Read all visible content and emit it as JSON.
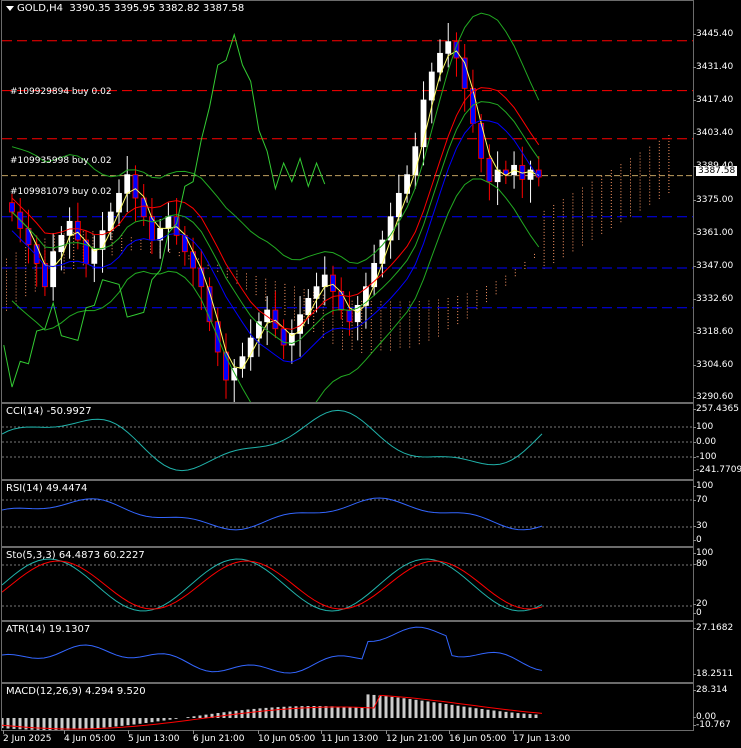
{
  "symbol_header": {
    "symbol": "GOLD,H4",
    "ohlc": "3390.35 3395.95 3382.82 3387.58"
  },
  "main_axis": [
    "3445.40",
    "3431.40",
    "3417.40",
    "3403.40",
    "3389.40",
    "3375.00",
    "3361.00",
    "3347.00",
    "3332.60",
    "3318.60",
    "3304.60",
    "3290.60"
  ],
  "current_price": "3387.58",
  "orders": [
    {
      "label": "#109929894 buy 0.02"
    },
    {
      "label": "#109935998 buy 0.02"
    },
    {
      "label": "#109981079 buy 0.02"
    }
  ],
  "indicators": {
    "cci": {
      "label": "CCI(14) -50.9927",
      "axis": [
        "257.4365",
        "100",
        "0.00",
        "-100",
        "-241.7709"
      ]
    },
    "rsi": {
      "label": "RSI(14) 49.4474",
      "axis": [
        "100",
        "70",
        "30",
        "0"
      ]
    },
    "stoch": {
      "label": "Sto(5,3,3) 64.4873 60.2227",
      "axis": [
        "100",
        "80",
        "20",
        "0"
      ]
    },
    "atr": {
      "label": "ATR(14) 19.1307",
      "axis": [
        "27.1682",
        "18.2511"
      ]
    },
    "macd": {
      "label": "MACD(12,26,9) 4.294 9.520",
      "axis": [
        "28.314",
        "0.00",
        "-10.767"
      ]
    }
  },
  "time_axis": [
    "2 Jun 2025",
    "4 Jun 05:00",
    "5 Jun 13:00",
    "6 Jun 21:00",
    "10 Jun 05:00",
    "11 Jun 13:00",
    "12 Jun 21:00",
    "16 Jun 05:00",
    "17 Jun 13:00"
  ],
  "colors": {
    "bull": "#ffffff",
    "bear": "#ff0000",
    "up_body": "#ffffff",
    "down_body": "#0000ff",
    "order_line": "#ff0000",
    "level_line": "#0000ff",
    "cloud": "#ff9966",
    "indicator": "#3366ff",
    "signal": "#ff0000"
  },
  "chart_data": {
    "type": "candlestick",
    "symbol": "GOLD,H4",
    "ylim": [
      3290.6,
      3459.0
    ],
    "close_series": [
      3372,
      3365,
      3358,
      3350,
      3340,
      3355,
      3362,
      3368,
      3360,
      3350,
      3356,
      3364,
      3372,
      3380,
      3388,
      3378,
      3370,
      3360,
      3365,
      3370,
      3362,
      3355,
      3348,
      3340,
      3325,
      3312,
      3300,
      3305,
      3310,
      3318,
      3325,
      3330,
      3322,
      3315,
      3320,
      3328,
      3335,
      3340,
      3345,
      3338,
      3330,
      3325,
      3332,
      3340,
      3350,
      3360,
      3370,
      3380,
      3388,
      3400,
      3420,
      3432,
      3440,
      3445,
      3438,
      3425,
      3410,
      3395,
      3385,
      3390,
      3388,
      3392,
      3386,
      3390,
      3387
    ],
    "order_levels": [
      3445.4,
      3424.0,
      3403.4
    ],
    "support_levels": [
      3370.0,
      3348.0,
      3331.0
    ],
    "current_price": 3387.58
  }
}
